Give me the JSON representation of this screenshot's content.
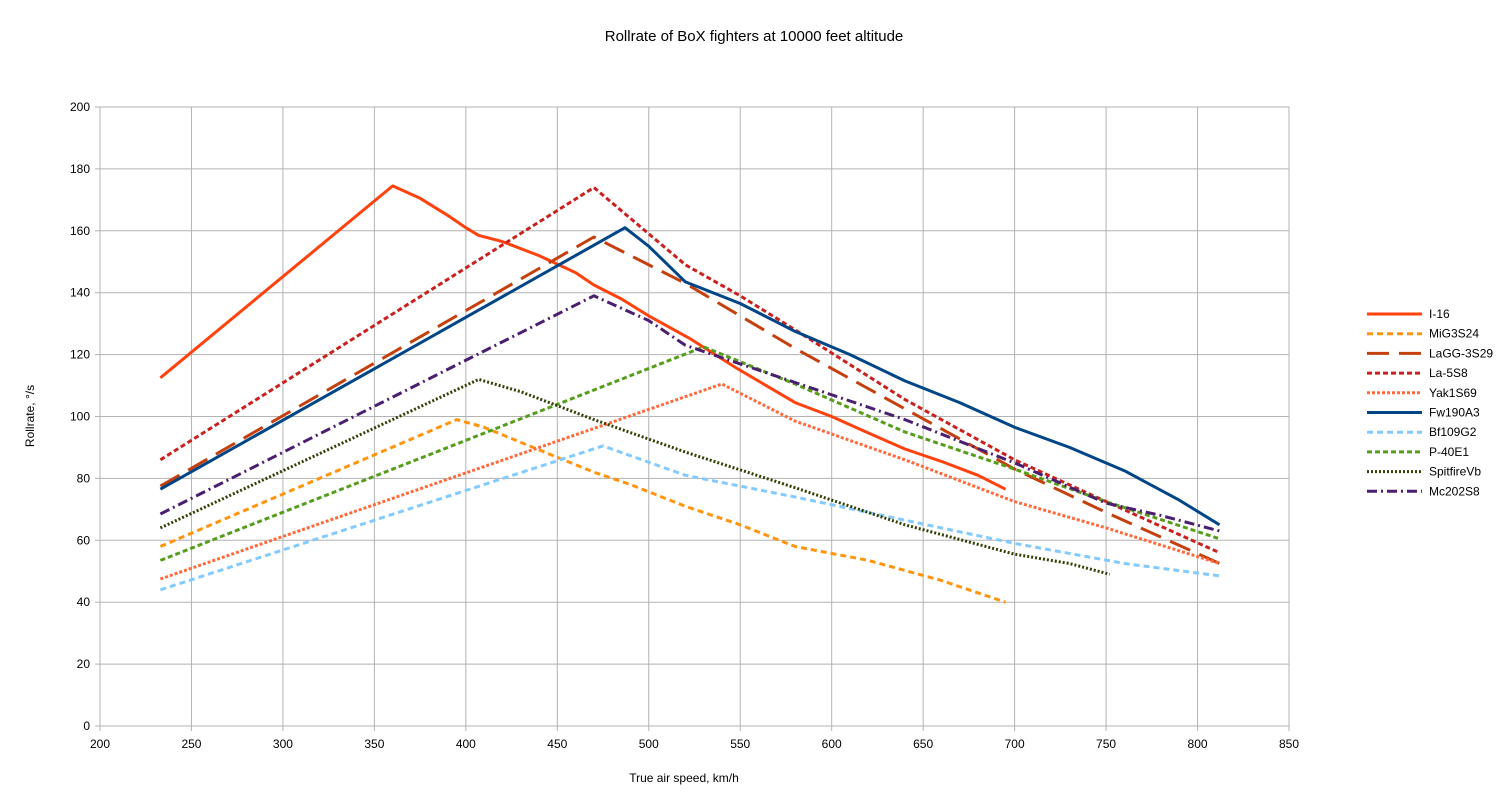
{
  "chart_data": {
    "type": "line",
    "title": "Rollrate of BoX fighters at 10000 feet altitude",
    "xlabel": "True air speed, km/h",
    "ylabel": "Rollrate, °/s",
    "xlim": [
      200,
      850
    ],
    "ylim": [
      0,
      200
    ],
    "xticks": [
      200,
      250,
      300,
      350,
      400,
      450,
      500,
      550,
      600,
      650,
      700,
      750,
      800,
      850
    ],
    "yticks": [
      0,
      20,
      40,
      60,
      80,
      100,
      120,
      140,
      160,
      180,
      200
    ],
    "grid": true,
    "legend_position": "right",
    "series": [
      {
        "name": "I-16",
        "color": "#ff420e",
        "dash": "solid",
        "points": [
          [
            233,
            112.5
          ],
          [
            360,
            174.5
          ],
          [
            375,
            170.5
          ],
          [
            390,
            165
          ],
          [
            400,
            161
          ],
          [
            407,
            158.5
          ],
          [
            420,
            156.5
          ],
          [
            440,
            152
          ],
          [
            460,
            146.5
          ],
          [
            470,
            142.5
          ],
          [
            485,
            138
          ],
          [
            500,
            132.5
          ],
          [
            523,
            125
          ],
          [
            547,
            116
          ],
          [
            580,
            104.5
          ],
          [
            600,
            100
          ],
          [
            615,
            96
          ],
          [
            640,
            89.5
          ],
          [
            660,
            85.5
          ],
          [
            680,
            81
          ],
          [
            695,
            76.5
          ]
        ]
      },
      {
        "name": "MiG3S24",
        "color": "#ff950e",
        "dash": "6,4",
        "points": [
          [
            233,
            58
          ],
          [
            395,
            99
          ],
          [
            410,
            96.5
          ],
          [
            445,
            88
          ],
          [
            470,
            82
          ],
          [
            490,
            78
          ],
          [
            520,
            71
          ],
          [
            550,
            65
          ],
          [
            580,
            58
          ],
          [
            620,
            53.5
          ],
          [
            660,
            47
          ],
          [
            695,
            40
          ]
        ]
      },
      {
        "name": "LaGG-3S29",
        "color": "#c5400f",
        "dash": "22,10",
        "points": [
          [
            233,
            77.5
          ],
          [
            470,
            158
          ],
          [
            520,
            143
          ],
          [
            580,
            122
          ],
          [
            640,
            102.5
          ],
          [
            700,
            83
          ],
          [
            750,
            69
          ],
          [
            812,
            52.5
          ]
        ]
      },
      {
        "name": "La-5S8",
        "color": "#c9211e",
        "dash": "5,3",
        "points": [
          [
            233,
            86
          ],
          [
            470,
            174
          ],
          [
            520,
            149
          ],
          [
            550,
            139
          ],
          [
            580,
            128
          ],
          [
            640,
            105.5
          ],
          [
            700,
            86
          ],
          [
            752,
            72
          ],
          [
            812,
            56
          ]
        ]
      },
      {
        "name": "Yak1S69",
        "color": "#ff6a3d",
        "dash": "3,2",
        "points": [
          [
            233,
            47.5
          ],
          [
            540,
            110.5
          ],
          [
            580,
            98.5
          ],
          [
            640,
            86
          ],
          [
            700,
            72.5
          ],
          [
            750,
            64
          ],
          [
            812,
            52.5
          ]
        ]
      },
      {
        "name": "Fw190A3",
        "color": "#004586",
        "dash": "solid",
        "points": [
          [
            233,
            76.5
          ],
          [
            487,
            161
          ],
          [
            500,
            155
          ],
          [
            520,
            143.5
          ],
          [
            550,
            136.5
          ],
          [
            580,
            127.5
          ],
          [
            610,
            120
          ],
          [
            640,
            111.5
          ],
          [
            670,
            104.5
          ],
          [
            700,
            96.5
          ],
          [
            730,
            90
          ],
          [
            760,
            82.5
          ],
          [
            790,
            73
          ],
          [
            812,
            65
          ]
        ]
      },
      {
        "name": "Bf109G2",
        "color": "#83caff",
        "dash": "6,4",
        "points": [
          [
            233,
            44
          ],
          [
            475,
            90.5
          ],
          [
            520,
            81
          ],
          [
            580,
            74
          ],
          [
            640,
            66.5
          ],
          [
            700,
            59
          ],
          [
            760,
            52.5
          ],
          [
            812,
            48.5
          ]
        ]
      },
      {
        "name": "P-40E1",
        "color": "#579d1c",
        "dash": "5,3",
        "points": [
          [
            233,
            53.5
          ],
          [
            530,
            122.5
          ],
          [
            580,
            110.5
          ],
          [
            640,
            95
          ],
          [
            700,
            83
          ],
          [
            750,
            72.5
          ],
          [
            812,
            60.5
          ]
        ]
      },
      {
        "name": "SpitfireVb",
        "color": "#314004",
        "dash": "2,2",
        "points": [
          [
            233,
            64
          ],
          [
            407,
            112
          ],
          [
            430,
            108
          ],
          [
            470,
            99
          ],
          [
            520,
            88.5
          ],
          [
            580,
            77
          ],
          [
            640,
            65
          ],
          [
            700,
            55.5
          ],
          [
            730,
            52.5
          ],
          [
            752,
            49
          ]
        ]
      },
      {
        "name": "Mc202S8",
        "color": "#4b1f6f",
        "dash": "10,4,2,4",
        "points": [
          [
            233,
            68.5
          ],
          [
            470,
            139
          ],
          [
            500,
            131
          ],
          [
            520,
            123
          ],
          [
            550,
            117
          ],
          [
            580,
            111
          ],
          [
            610,
            105
          ],
          [
            640,
            99
          ],
          [
            670,
            92
          ],
          [
            700,
            85
          ],
          [
            750,
            72
          ],
          [
            780,
            68
          ],
          [
            812,
            63
          ]
        ]
      }
    ]
  }
}
